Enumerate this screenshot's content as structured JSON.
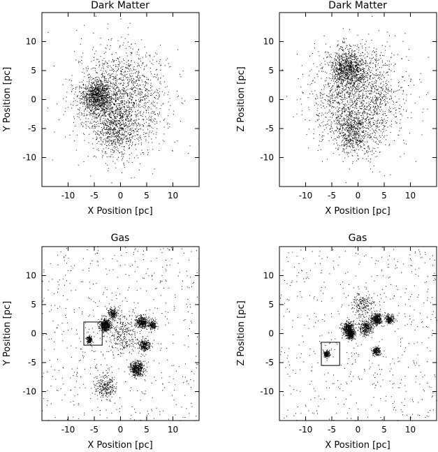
{
  "chart_data": [
    {
      "type": "scatter",
      "title": "Dark Matter",
      "xlabel": "X Position [pc]",
      "ylabel": "Y Position [pc]",
      "xlim": [
        -15,
        15
      ],
      "ylim": [
        -15,
        15
      ],
      "xticks": [
        "-10",
        "-5",
        "0",
        "5",
        "10"
      ],
      "yticks": [
        "-10",
        "-5",
        "0",
        "5",
        "10"
      ],
      "grid": false,
      "clusters": [
        {
          "cx": 0,
          "cy": 0,
          "spread": 8.0,
          "points": 1800
        },
        {
          "cx": -4.5,
          "cy": 0.5,
          "spread": 2.6,
          "points": 900
        },
        {
          "cx": -1,
          "cy": -5,
          "spread": 3.5,
          "points": 500
        }
      ]
    },
    {
      "type": "scatter",
      "title": "Dark Matter",
      "xlabel": "X Position [pc]",
      "ylabel": "Z Position [pc]",
      "xlim": [
        -15,
        15
      ],
      "ylim": [
        -15,
        15
      ],
      "xticks": [
        "-10",
        "-5",
        "0",
        "5",
        "10"
      ],
      "yticks": [
        "-10",
        "-5",
        "0",
        "5",
        "10"
      ],
      "grid": false,
      "clusters": [
        {
          "cx": 0,
          "cy": 0,
          "spread": 8.0,
          "points": 1800
        },
        {
          "cx": -2,
          "cy": 5.5,
          "spread": 3.0,
          "points": 900
        },
        {
          "cx": -1,
          "cy": -6,
          "spread": 3.0,
          "points": 450
        }
      ]
    },
    {
      "type": "scatter",
      "title": "Gas",
      "xlabel": "X Position [pc]",
      "ylabel": "Y Position [pc]",
      "xlim": [
        -15,
        15
      ],
      "ylim": [
        -15,
        15
      ],
      "xticks": [
        "-10",
        "-5",
        "0",
        "5",
        "10"
      ],
      "yticks": [
        "-10",
        "-5",
        "0",
        "5",
        "10"
      ],
      "grid": false,
      "clusters": [
        {
          "cx": 0,
          "cy": 0,
          "spread": 12.0,
          "points": 550
        },
        {
          "cx": -3,
          "cy": 1.5,
          "spread": 0.9,
          "points": 500
        },
        {
          "cx": -1.5,
          "cy": 3.5,
          "spread": 0.8,
          "points": 200
        },
        {
          "cx": 4,
          "cy": 2,
          "spread": 1.0,
          "points": 350
        },
        {
          "cx": 6,
          "cy": 1.5,
          "spread": 0.8,
          "points": 180
        },
        {
          "cx": 4.5,
          "cy": -2,
          "spread": 1.0,
          "points": 250
        },
        {
          "cx": 3,
          "cy": -6,
          "spread": 1.2,
          "points": 450
        },
        {
          "cx": -6,
          "cy": -1,
          "spread": 0.5,
          "points": 150
        },
        {
          "cx": -3,
          "cy": -9,
          "spread": 2.0,
          "points": 250
        },
        {
          "cx": 0.5,
          "cy": 0,
          "spread": 3.0,
          "points": 300
        }
      ],
      "box": {
        "x0": -7,
        "x1": -3.5,
        "y0": -2,
        "y1": 2
      }
    },
    {
      "type": "scatter",
      "title": "Gas",
      "xlabel": "X Position [pc]",
      "ylabel": "Z Position [pc]",
      "xlim": [
        -15,
        15
      ],
      "ylim": [
        -15,
        15
      ],
      "xticks": [
        "-10",
        "-5",
        "0",
        "5",
        "10"
      ],
      "yticks": [
        "-10",
        "-5",
        "0",
        "5",
        "10"
      ],
      "grid": false,
      "clusters": [
        {
          "cx": 0,
          "cy": 0,
          "spread": 12.0,
          "points": 550
        },
        {
          "cx": -2,
          "cy": 1,
          "spread": 1.0,
          "points": 350
        },
        {
          "cx": -1.5,
          "cy": 0,
          "spread": 0.8,
          "points": 350
        },
        {
          "cx": 1.5,
          "cy": 1,
          "spread": 1.2,
          "points": 300
        },
        {
          "cx": 3.5,
          "cy": 2.5,
          "spread": 0.9,
          "points": 400
        },
        {
          "cx": 6,
          "cy": 2.5,
          "spread": 0.7,
          "points": 200
        },
        {
          "cx": 3.5,
          "cy": -3,
          "spread": 0.7,
          "points": 180
        },
        {
          "cx": -6,
          "cy": -3.5,
          "spread": 0.5,
          "points": 180
        },
        {
          "cx": 1,
          "cy": 5,
          "spread": 2.0,
          "points": 200
        }
      ],
      "box": {
        "x0": -7,
        "x1": -3.5,
        "y0": -5.5,
        "y1": -1.5
      }
    }
  ]
}
